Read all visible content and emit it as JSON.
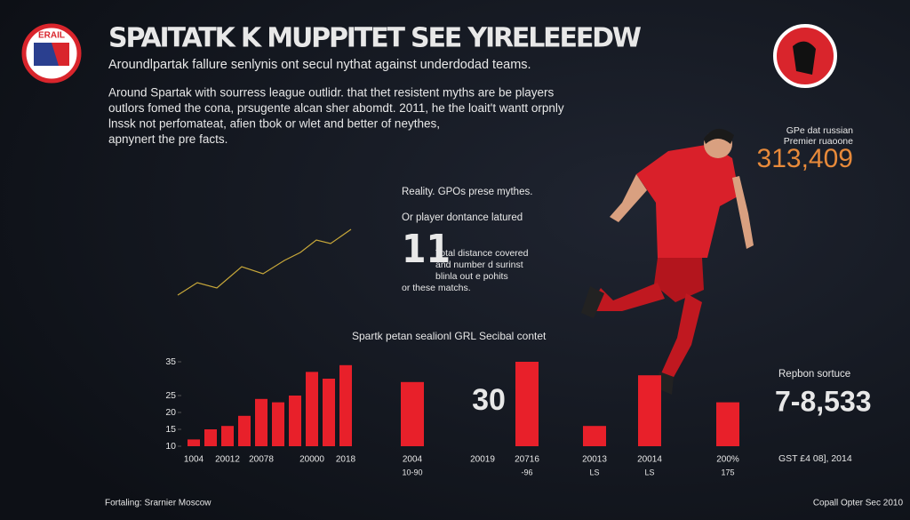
{
  "header": {
    "title": "SPAITATK K MUPPITET SEE YIRELEEEDW",
    "subtitle": "Aroundlpartak fallure senlynis ont secul nythat against underdodad teams.",
    "logo_left": "ERAIL"
  },
  "intro": [
    "Around Spartak with sourress league outlidr. that thet resistent myths are be players",
    "outlors fomed the cona, prsugente alcan sher abomdt. 2011, he the loait't wantt orpnly",
    "lnssk not perfomateat, afien tbok or wlet and better of neythes,",
    "apnynert the pre facts."
  ],
  "stat_top": {
    "label": [
      "GPe dat russian",
      "Premier ruaoone"
    ],
    "value": "313,409"
  },
  "reality": {
    "heading": "Reality. GPOs prese mythes.",
    "subheading": "Or player dontance latured",
    "big_number": "11",
    "notes": [
      "Total distance covered",
      "and number d surinst",
      "blinla out e pohits",
      "or these matchs."
    ]
  },
  "stat_bottom": {
    "label": "Repbon sortuce",
    "value": "7-8,533",
    "note": "GST £4 08], 2014"
  },
  "footer": {
    "left": "Fortaling: Srarnier Moscow",
    "right": "Copall Opter Sec 2010"
  },
  "chart_data": [
    {
      "type": "bar",
      "title": "Spartk petan sealionl GRL Secibal contet",
      "categories": [
        "1004",
        null,
        "20012",
        null,
        "20078",
        null,
        null,
        "20000",
        null,
        "2018"
      ],
      "values": [
        12,
        15,
        16,
        19,
        24,
        23,
        25,
        32,
        30,
        34
      ],
      "color": "#e8202a",
      "ylim": [
        10,
        35
      ],
      "yticks": [
        35,
        25,
        20,
        15,
        10
      ]
    },
    {
      "type": "bar",
      "annotation": "30",
      "categories": [
        "2004",
        "20019",
        "20716",
        "20013",
        "20014",
        "200%"
      ],
      "sublabels": [
        "10-90",
        null,
        "-96",
        "LS",
        "LS",
        "175"
      ],
      "values": [
        29,
        null,
        35,
        16,
        31,
        23
      ],
      "color": "#e8202a",
      "ylim": [
        10,
        35
      ]
    }
  ]
}
